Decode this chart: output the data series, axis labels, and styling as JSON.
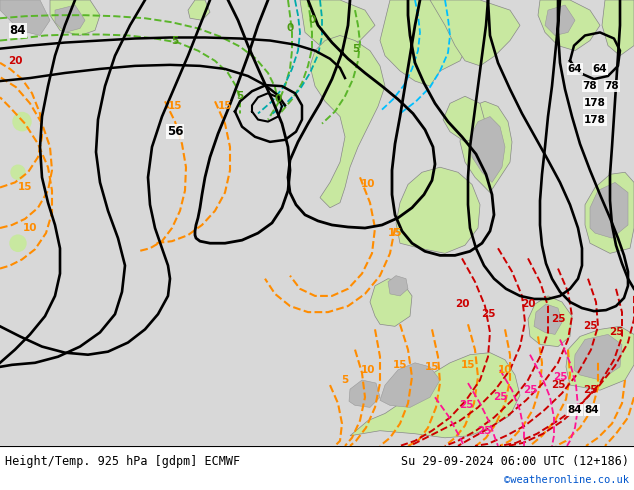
{
  "title_left": "Height/Temp. 925 hPa [gdpm] ECMWF",
  "title_right": "Su 29-09-2024 06:00 UTC (12+186)",
  "credit": "©weatheronline.co.uk",
  "bg_color": "#ffffff",
  "ocean_color": "#d8d8d8",
  "land_color": "#c8e8a0",
  "gray_land_color": "#b8b8b8",
  "figsize": [
    6.34,
    4.9
  ],
  "dpi": 100,
  "bottom_text_color": "#000000",
  "credit_color": "#0055cc",
  "font_size_bottom": 8.5,
  "font_size_credit": 7.5
}
